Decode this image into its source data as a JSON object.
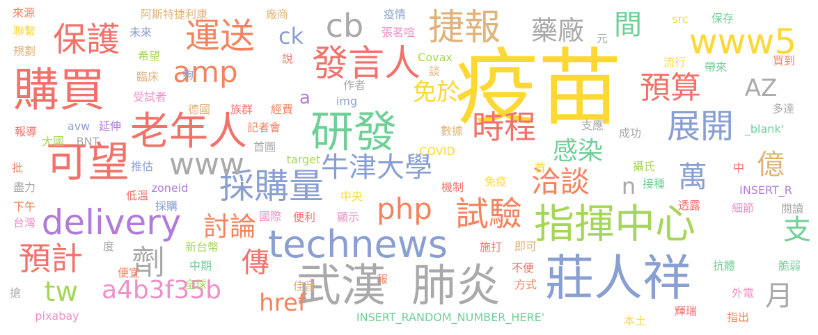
{
  "palette": {
    "yellow": "#fdd835",
    "orange": "#f4845f",
    "red": "#f2726b",
    "purple": "#b07cd8",
    "blue": "#8a9fd1",
    "green": "#a5d65a",
    "teal": "#6fcf97",
    "tan": "#e0b37a",
    "gray": "#a9a9a9",
    "pink": "#ef8fc6",
    "lightorange": "#f7a95e"
  },
  "words": [
    {
      "text": "疫苗",
      "color": "yellow"
    },
    {
      "text": "莊人祥",
      "color": "blue"
    },
    {
      "text": "指揮中心",
      "color": "green"
    },
    {
      "text": "武漢",
      "color": "gray"
    },
    {
      "text": "肺炎",
      "color": "gray"
    },
    {
      "text": "購買",
      "color": "red"
    },
    {
      "text": "研發",
      "color": "teal"
    },
    {
      "text": "老年人",
      "color": "red"
    },
    {
      "text": "可望",
      "color": "red"
    },
    {
      "text": "technews",
      "color": "blue"
    },
    {
      "text": "delivery",
      "color": "purple"
    },
    {
      "text": "採購量",
      "color": "blue"
    },
    {
      "text": "php",
      "color": "orange"
    },
    {
      "text": "試驗",
      "color": "orange"
    },
    {
      "text": "發言人",
      "color": "red"
    },
    {
      "text": "捷報",
      "color": "tan"
    },
    {
      "text": "www5",
      "color": "yellow"
    },
    {
      "text": "cb",
      "color": "gray"
    },
    {
      "text": "amp",
      "color": "orange"
    },
    {
      "text": "運送",
      "color": "orange"
    },
    {
      "text": "保護",
      "color": "red"
    },
    {
      "text": "時程",
      "color": "red"
    },
    {
      "text": "展開",
      "color": "blue"
    },
    {
      "text": "洽談",
      "color": "orange"
    },
    {
      "text": "劑",
      "color": "gray"
    },
    {
      "text": "傳",
      "color": "red"
    },
    {
      "text": "預計",
      "color": "red"
    },
    {
      "text": "a4b3f35b",
      "color": "pink"
    },
    {
      "text": "牛津大學",
      "color": "blue"
    },
    {
      "text": "www",
      "color": "gray"
    },
    {
      "text": "預算",
      "color": "red"
    },
    {
      "text": "藥廠",
      "color": "gray"
    },
    {
      "text": "間",
      "color": "teal"
    },
    {
      "text": "萬",
      "color": "blue"
    },
    {
      "text": "億",
      "color": "tan"
    },
    {
      "text": "支",
      "color": "teal"
    },
    {
      "text": "月",
      "color": "gray"
    },
    {
      "text": "tw",
      "color": "green"
    },
    {
      "text": "href",
      "color": "orange"
    },
    {
      "text": "討論",
      "color": "orange"
    },
    {
      "text": "感染",
      "color": "teal"
    },
    {
      "text": "免於",
      "color": "yellow"
    },
    {
      "text": "AZ",
      "color": "gray"
    },
    {
      "text": "ck",
      "color": "blue"
    },
    {
      "text": "a",
      "color": "purple"
    },
    {
      "text": "n",
      "color": "gray"
    },
    {
      "text": "來源",
      "color": "orange"
    },
    {
      "text": "聯繫",
      "color": "yellow"
    },
    {
      "text": "規劃",
      "color": "tan"
    },
    {
      "text": "阿斯特捷利康",
      "color": "tan"
    },
    {
      "text": "未來",
      "color": "blue"
    },
    {
      "text": "希望",
      "color": "green"
    },
    {
      "text": "臨床",
      "color": "tan"
    },
    {
      "text": "受試者",
      "color": "pink"
    },
    {
      "text": "報導",
      "color": "red"
    },
    {
      "text": "avw",
      "color": "blue"
    },
    {
      "text": "延伸",
      "color": "purple"
    },
    {
      "text": "大國",
      "color": "green"
    },
    {
      "text": "BNT",
      "color": "gray"
    },
    {
      "text": "批",
      "color": "orange"
    },
    {
      "text": "盡力",
      "color": "gray"
    },
    {
      "text": "下午",
      "color": "orange"
    },
    {
      "text": "台灣",
      "color": "pink"
    },
    {
      "text": "推估",
      "color": "blue"
    },
    {
      "text": "低溫",
      "color": "red"
    },
    {
      "text": "zoneid",
      "color": "purple"
    },
    {
      "text": "採購",
      "color": "blue"
    },
    {
      "text": "新台幣",
      "color": "green"
    },
    {
      "text": "中期",
      "color": "teal"
    },
    {
      "text": "全球",
      "color": "green"
    },
    {
      "text": "便宜",
      "color": "orange"
    },
    {
      "text": "度",
      "color": "gray"
    },
    {
      "text": "搶",
      "color": "gray"
    },
    {
      "text": "pixabay",
      "color": "pink"
    },
    {
      "text": "INSERT_RANDOM_NUMBER_HERE'",
      "color": "teal"
    },
    {
      "text": "廠商",
      "color": "tan"
    },
    {
      "text": "疫情",
      "color": "blue"
    },
    {
      "text": "張茗喧",
      "color": "pink"
    },
    {
      "text": "說",
      "color": "red"
    },
    {
      "text": "夠",
      "color": "blue"
    },
    {
      "text": "Covax",
      "color": "green"
    },
    {
      "text": "談",
      "color": "tan"
    },
    {
      "text": "作者",
      "color": "gray"
    },
    {
      "text": "img",
      "color": "blue"
    },
    {
      "text": "德國",
      "color": "tan"
    },
    {
      "text": "族群",
      "color": "red"
    },
    {
      "text": "經費",
      "color": "orange"
    },
    {
      "text": "記者會",
      "color": "orange"
    },
    {
      "text": "首圖",
      "color": "gray"
    },
    {
      "text": "target",
      "color": "green"
    },
    {
      "text": "COVID",
      "color": "yellow"
    },
    {
      "text": "數據",
      "color": "tan"
    },
    {
      "text": "機制",
      "color": "red"
    },
    {
      "text": "中央",
      "color": "yellow"
    },
    {
      "text": "免疫",
      "color": "yellow"
    },
    {
      "text": "國際",
      "color": "pink"
    },
    {
      "text": "便利",
      "color": "red"
    },
    {
      "text": "顯示",
      "color": "pink"
    },
    {
      "text": "施打",
      "color": "red"
    },
    {
      "text": "即可",
      "color": "tan"
    },
    {
      "text": "佳音",
      "color": "tan"
    },
    {
      "text": "不便",
      "color": "red"
    },
    {
      "text": "方式",
      "color": "orange"
    },
    {
      "text": "報",
      "color": "orange"
    },
    {
      "text": "首",
      "color": "yellow"
    },
    {
      "text": "元",
      "color": "gray"
    },
    {
      "text": "src",
      "color": "yellow"
    },
    {
      "text": "保存",
      "color": "teal"
    },
    {
      "text": "買到",
      "color": "orange"
    },
    {
      "text": "流行",
      "color": "yellow"
    },
    {
      "text": "帶來",
      "color": "teal"
    },
    {
      "text": "多達",
      "color": "gray"
    },
    {
      "text": "_blank'",
      "color": "teal"
    },
    {
      "text": "支應",
      "color": "gray"
    },
    {
      "text": "成功",
      "color": "gray"
    },
    {
      "text": "攝氏",
      "color": "green"
    },
    {
      "text": "接種",
      "color": "teal"
    },
    {
      "text": "中",
      "color": "red"
    },
    {
      "text": "INSERT_R",
      "color": "purple"
    },
    {
      "text": "透露",
      "color": "red"
    },
    {
      "text": "細節",
      "color": "pink"
    },
    {
      "text": "閱讀",
      "color": "gray"
    },
    {
      "text": "抗體",
      "color": "teal"
    },
    {
      "text": "脆弱",
      "color": "teal"
    },
    {
      "text": "外電",
      "color": "pink"
    },
    {
      "text": "輝瑞",
      "color": "red"
    },
    {
      "text": "本土",
      "color": "yellow"
    },
    {
      "text": "指出",
      "color": "orange"
    }
  ]
}
